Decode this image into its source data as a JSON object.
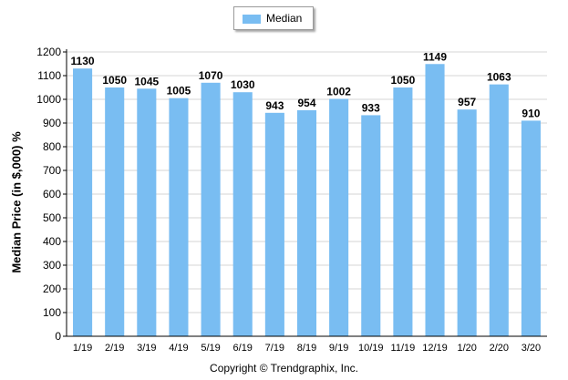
{
  "chart_data": {
    "type": "bar",
    "categories": [
      "1/19",
      "2/19",
      "3/19",
      "4/19",
      "5/19",
      "6/19",
      "7/19",
      "8/19",
      "9/19",
      "10/19",
      "11/19",
      "12/19",
      "1/20",
      "2/20",
      "3/20"
    ],
    "series": [
      {
        "name": "Median",
        "values": [
          1130,
          1050,
          1045,
          1005,
          1070,
          1030,
          943,
          954,
          1002,
          933,
          1050,
          1149,
          957,
          1063,
          910
        ]
      }
    ],
    "ylabel": "Median Price (in $,000) %",
    "ylim": [
      0,
      1200
    ],
    "yticks": [
      0,
      100,
      200,
      300,
      400,
      500,
      600,
      700,
      800,
      900,
      1000,
      1100,
      1200
    ],
    "grid": true,
    "legend": "top-center",
    "bar_color": "#79bdf2"
  },
  "footer": "Copyright © Trendgraphix, Inc."
}
